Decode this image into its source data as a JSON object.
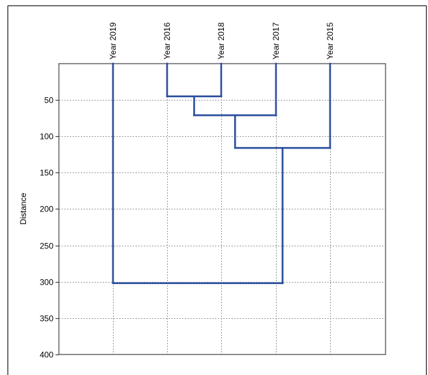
{
  "chart_data": {
    "type": "dendrogram",
    "title": "",
    "ylabel": "Distance",
    "xlabel": "",
    "ylim": [
      0,
      400
    ],
    "y_inverted": true,
    "y_ticks": [
      50,
      100,
      150,
      200,
      250,
      300,
      350,
      400
    ],
    "grid": true,
    "leaves": [
      "Year 2019",
      "Year 2016",
      "Year 2018",
      "Year 2017",
      "Year 2015"
    ],
    "merges": [
      {
        "left": "Year 2016",
        "right": "Year 2018",
        "height": 45
      },
      {
        "left": "Year 2016+2018",
        "right": "Year 2017",
        "height": 71
      },
      {
        "left": "Year 2016+2018+2017",
        "right": "Year 2015",
        "height": 116
      },
      {
        "left": "Year 2019",
        "right": "Year 2016+2018+2017+2015",
        "height": 302
      }
    ],
    "colors": {
      "line": "#2b4f9e",
      "grid": "#9a9a9a",
      "axis": "#444444"
    }
  }
}
